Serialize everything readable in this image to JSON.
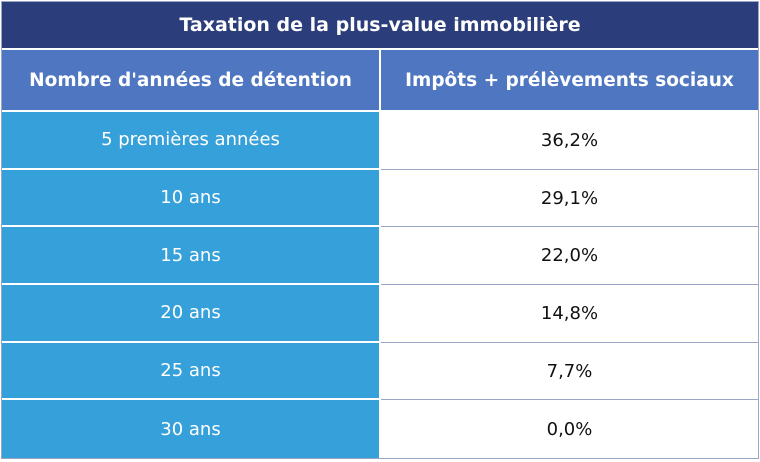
{
  "table": {
    "title": "Taxation de la plus-value immobilière",
    "header": [
      "Nombre d'années de détention",
      "Impôts + prélèvements sociaux"
    ],
    "rows": [
      [
        "5 premières années",
        "36,2%"
      ],
      [
        "10 ans",
        "29,1%"
      ],
      [
        "15 ans",
        "22,0%"
      ],
      [
        "20 ans",
        "14,8%"
      ],
      [
        "25 ans",
        "7,7%"
      ],
      [
        "30 ans",
        "0,0%"
      ]
    ]
  }
}
